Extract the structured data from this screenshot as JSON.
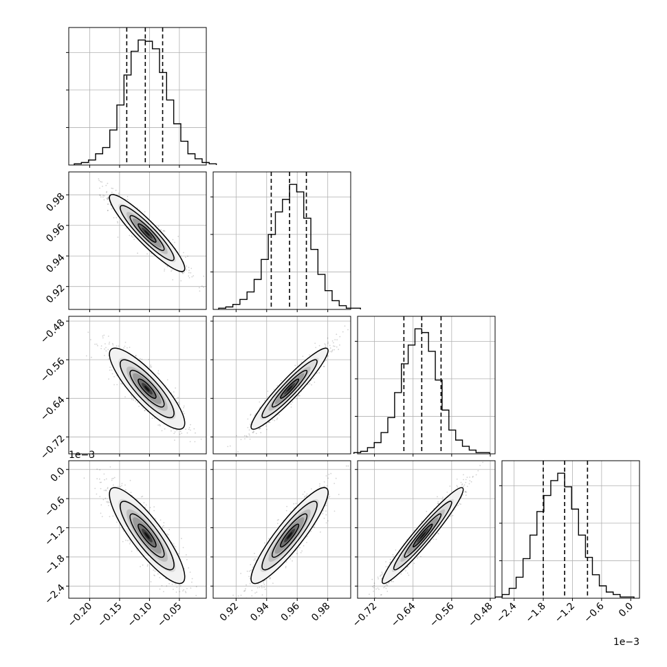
{
  "chart_data": {
    "type": "corner",
    "parameters": [
      {
        "range": [
          -0.235,
          -0.005
        ],
        "ticks": [
          -0.2,
          -0.15,
          -0.1,
          -0.05
        ],
        "tick_labels": [
          "−0.20",
          "−0.15",
          "−0.10",
          "−0.05"
        ],
        "quantiles": [
          -0.138,
          -0.107,
          -0.078
        ]
      },
      {
        "range": [
          0.905,
          0.995
        ],
        "ticks": [
          0.92,
          0.94,
          0.96,
          0.98
        ],
        "tick_labels": [
          "0.92",
          "0.94",
          "0.96",
          "0.98"
        ],
        "quantiles": [
          0.943,
          0.955,
          0.966
        ]
      },
      {
        "range": [
          -0.755,
          -0.47
        ],
        "ticks": [
          -0.72,
          -0.64,
          -0.56,
          -0.48
        ],
        "tick_labels": [
          "−0.72",
          "−0.64",
          "−0.56",
          "−0.48"
        ],
        "quantiles": [
          -0.659,
          -0.622,
          -0.582
        ]
      },
      {
        "range": [
          -2.65,
          0.18
        ],
        "ticks": [
          -2.4,
          -1.8,
          -1.2,
          -0.6,
          0.0
        ],
        "tick_labels": [
          "−2.4",
          "−1.8",
          "−1.2",
          "−0.6",
          "0.0"
        ],
        "quantiles": [
          -1.8,
          -1.36,
          -0.89
        ]
      }
    ],
    "hist_counts": [
      [
        1,
        2,
        4,
        9,
        14,
        28,
        48,
        72,
        91,
        100,
        99,
        93,
        74,
        52,
        33,
        19,
        9,
        5,
        2,
        1
      ],
      [
        1,
        2,
        4,
        8,
        14,
        24,
        40,
        60,
        78,
        88,
        100,
        94,
        73,
        48,
        28,
        15,
        7,
        3,
        1,
        1
      ],
      [
        1,
        2,
        5,
        9,
        17,
        29,
        49,
        72,
        87,
        100,
        97,
        82,
        59,
        35,
        19,
        11,
        6,
        3,
        1,
        1
      ],
      [
        1,
        3,
        8,
        17,
        32,
        51,
        70,
        83,
        95,
        101,
        90,
        72,
        51,
        33,
        19,
        10,
        5,
        3,
        1,
        1
      ]
    ],
    "pairs": {
      "1-0": {
        "mean": [
          -0.104,
          0.955
        ],
        "sd": [
          0.03,
          0.012
        ],
        "rho": -0.92
      },
      "2-0": {
        "mean": [
          -0.104,
          -0.62
        ],
        "sd": [
          0.03,
          0.04
        ],
        "rho": -0.85
      },
      "2-1": {
        "mean": [
          0.955,
          -0.62
        ],
        "sd": [
          0.012,
          0.04
        ],
        "rho": 0.94
      },
      "3-0": {
        "mean": [
          -0.104,
          -1.36
        ],
        "sd": [
          0.03,
          0.47
        ],
        "rho": -0.86
      },
      "3-1": {
        "mean": [
          0.955,
          -1.36
        ],
        "sd": [
          0.012,
          0.47
        ],
        "rho": 0.9
      },
      "3-2": {
        "mean": [
          -0.62,
          -1.36
        ],
        "sd": [
          0.04,
          0.47
        ],
        "rho": 0.96
      }
    },
    "offset_label": "1e−3",
    "grid": true
  }
}
